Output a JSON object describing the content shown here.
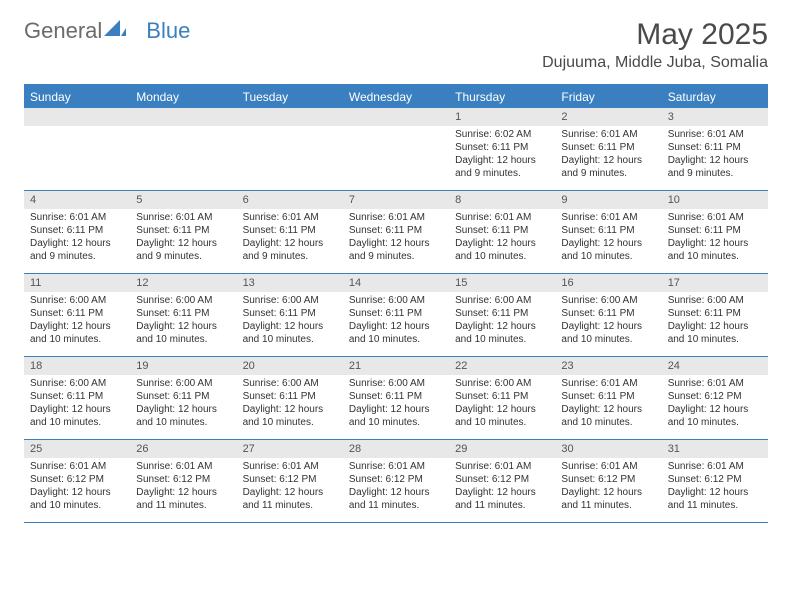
{
  "logo": {
    "general": "General",
    "blue": "Blue"
  },
  "title": "May 2025",
  "location": "Dujuuma, Middle Juba, Somalia",
  "colors": {
    "primary": "#3a7fbf",
    "daynum_bg": "#e8e8e8",
    "text": "#333333",
    "logo_gray": "#6b6b6b"
  },
  "dow": [
    "Sunday",
    "Monday",
    "Tuesday",
    "Wednesday",
    "Thursday",
    "Friday",
    "Saturday"
  ],
  "weeks": [
    [
      {
        "n": "",
        "lines": []
      },
      {
        "n": "",
        "lines": []
      },
      {
        "n": "",
        "lines": []
      },
      {
        "n": "",
        "lines": []
      },
      {
        "n": "1",
        "lines": [
          "Sunrise: 6:02 AM",
          "Sunset: 6:11 PM",
          "Daylight: 12 hours and 9 minutes."
        ]
      },
      {
        "n": "2",
        "lines": [
          "Sunrise: 6:01 AM",
          "Sunset: 6:11 PM",
          "Daylight: 12 hours and 9 minutes."
        ]
      },
      {
        "n": "3",
        "lines": [
          "Sunrise: 6:01 AM",
          "Sunset: 6:11 PM",
          "Daylight: 12 hours and 9 minutes."
        ]
      }
    ],
    [
      {
        "n": "4",
        "lines": [
          "Sunrise: 6:01 AM",
          "Sunset: 6:11 PM",
          "Daylight: 12 hours and 9 minutes."
        ]
      },
      {
        "n": "5",
        "lines": [
          "Sunrise: 6:01 AM",
          "Sunset: 6:11 PM",
          "Daylight: 12 hours and 9 minutes."
        ]
      },
      {
        "n": "6",
        "lines": [
          "Sunrise: 6:01 AM",
          "Sunset: 6:11 PM",
          "Daylight: 12 hours and 9 minutes."
        ]
      },
      {
        "n": "7",
        "lines": [
          "Sunrise: 6:01 AM",
          "Sunset: 6:11 PM",
          "Daylight: 12 hours and 9 minutes."
        ]
      },
      {
        "n": "8",
        "lines": [
          "Sunrise: 6:01 AM",
          "Sunset: 6:11 PM",
          "Daylight: 12 hours and 10 minutes."
        ]
      },
      {
        "n": "9",
        "lines": [
          "Sunrise: 6:01 AM",
          "Sunset: 6:11 PM",
          "Daylight: 12 hours and 10 minutes."
        ]
      },
      {
        "n": "10",
        "lines": [
          "Sunrise: 6:01 AM",
          "Sunset: 6:11 PM",
          "Daylight: 12 hours and 10 minutes."
        ]
      }
    ],
    [
      {
        "n": "11",
        "lines": [
          "Sunrise: 6:00 AM",
          "Sunset: 6:11 PM",
          "Daylight: 12 hours and 10 minutes."
        ]
      },
      {
        "n": "12",
        "lines": [
          "Sunrise: 6:00 AM",
          "Sunset: 6:11 PM",
          "Daylight: 12 hours and 10 minutes."
        ]
      },
      {
        "n": "13",
        "lines": [
          "Sunrise: 6:00 AM",
          "Sunset: 6:11 PM",
          "Daylight: 12 hours and 10 minutes."
        ]
      },
      {
        "n": "14",
        "lines": [
          "Sunrise: 6:00 AM",
          "Sunset: 6:11 PM",
          "Daylight: 12 hours and 10 minutes."
        ]
      },
      {
        "n": "15",
        "lines": [
          "Sunrise: 6:00 AM",
          "Sunset: 6:11 PM",
          "Daylight: 12 hours and 10 minutes."
        ]
      },
      {
        "n": "16",
        "lines": [
          "Sunrise: 6:00 AM",
          "Sunset: 6:11 PM",
          "Daylight: 12 hours and 10 minutes."
        ]
      },
      {
        "n": "17",
        "lines": [
          "Sunrise: 6:00 AM",
          "Sunset: 6:11 PM",
          "Daylight: 12 hours and 10 minutes."
        ]
      }
    ],
    [
      {
        "n": "18",
        "lines": [
          "Sunrise: 6:00 AM",
          "Sunset: 6:11 PM",
          "Daylight: 12 hours and 10 minutes."
        ]
      },
      {
        "n": "19",
        "lines": [
          "Sunrise: 6:00 AM",
          "Sunset: 6:11 PM",
          "Daylight: 12 hours and 10 minutes."
        ]
      },
      {
        "n": "20",
        "lines": [
          "Sunrise: 6:00 AM",
          "Sunset: 6:11 PM",
          "Daylight: 12 hours and 10 minutes."
        ]
      },
      {
        "n": "21",
        "lines": [
          "Sunrise: 6:00 AM",
          "Sunset: 6:11 PM",
          "Daylight: 12 hours and 10 minutes."
        ]
      },
      {
        "n": "22",
        "lines": [
          "Sunrise: 6:00 AM",
          "Sunset: 6:11 PM",
          "Daylight: 12 hours and 10 minutes."
        ]
      },
      {
        "n": "23",
        "lines": [
          "Sunrise: 6:01 AM",
          "Sunset: 6:11 PM",
          "Daylight: 12 hours and 10 minutes."
        ]
      },
      {
        "n": "24",
        "lines": [
          "Sunrise: 6:01 AM",
          "Sunset: 6:12 PM",
          "Daylight: 12 hours and 10 minutes."
        ]
      }
    ],
    [
      {
        "n": "25",
        "lines": [
          "Sunrise: 6:01 AM",
          "Sunset: 6:12 PM",
          "Daylight: 12 hours and 10 minutes."
        ]
      },
      {
        "n": "26",
        "lines": [
          "Sunrise: 6:01 AM",
          "Sunset: 6:12 PM",
          "Daylight: 12 hours and 11 minutes."
        ]
      },
      {
        "n": "27",
        "lines": [
          "Sunrise: 6:01 AM",
          "Sunset: 6:12 PM",
          "Daylight: 12 hours and 11 minutes."
        ]
      },
      {
        "n": "28",
        "lines": [
          "Sunrise: 6:01 AM",
          "Sunset: 6:12 PM",
          "Daylight: 12 hours and 11 minutes."
        ]
      },
      {
        "n": "29",
        "lines": [
          "Sunrise: 6:01 AM",
          "Sunset: 6:12 PM",
          "Daylight: 12 hours and 11 minutes."
        ]
      },
      {
        "n": "30",
        "lines": [
          "Sunrise: 6:01 AM",
          "Sunset: 6:12 PM",
          "Daylight: 12 hours and 11 minutes."
        ]
      },
      {
        "n": "31",
        "lines": [
          "Sunrise: 6:01 AM",
          "Sunset: 6:12 PM",
          "Daylight: 12 hours and 11 minutes."
        ]
      }
    ]
  ]
}
